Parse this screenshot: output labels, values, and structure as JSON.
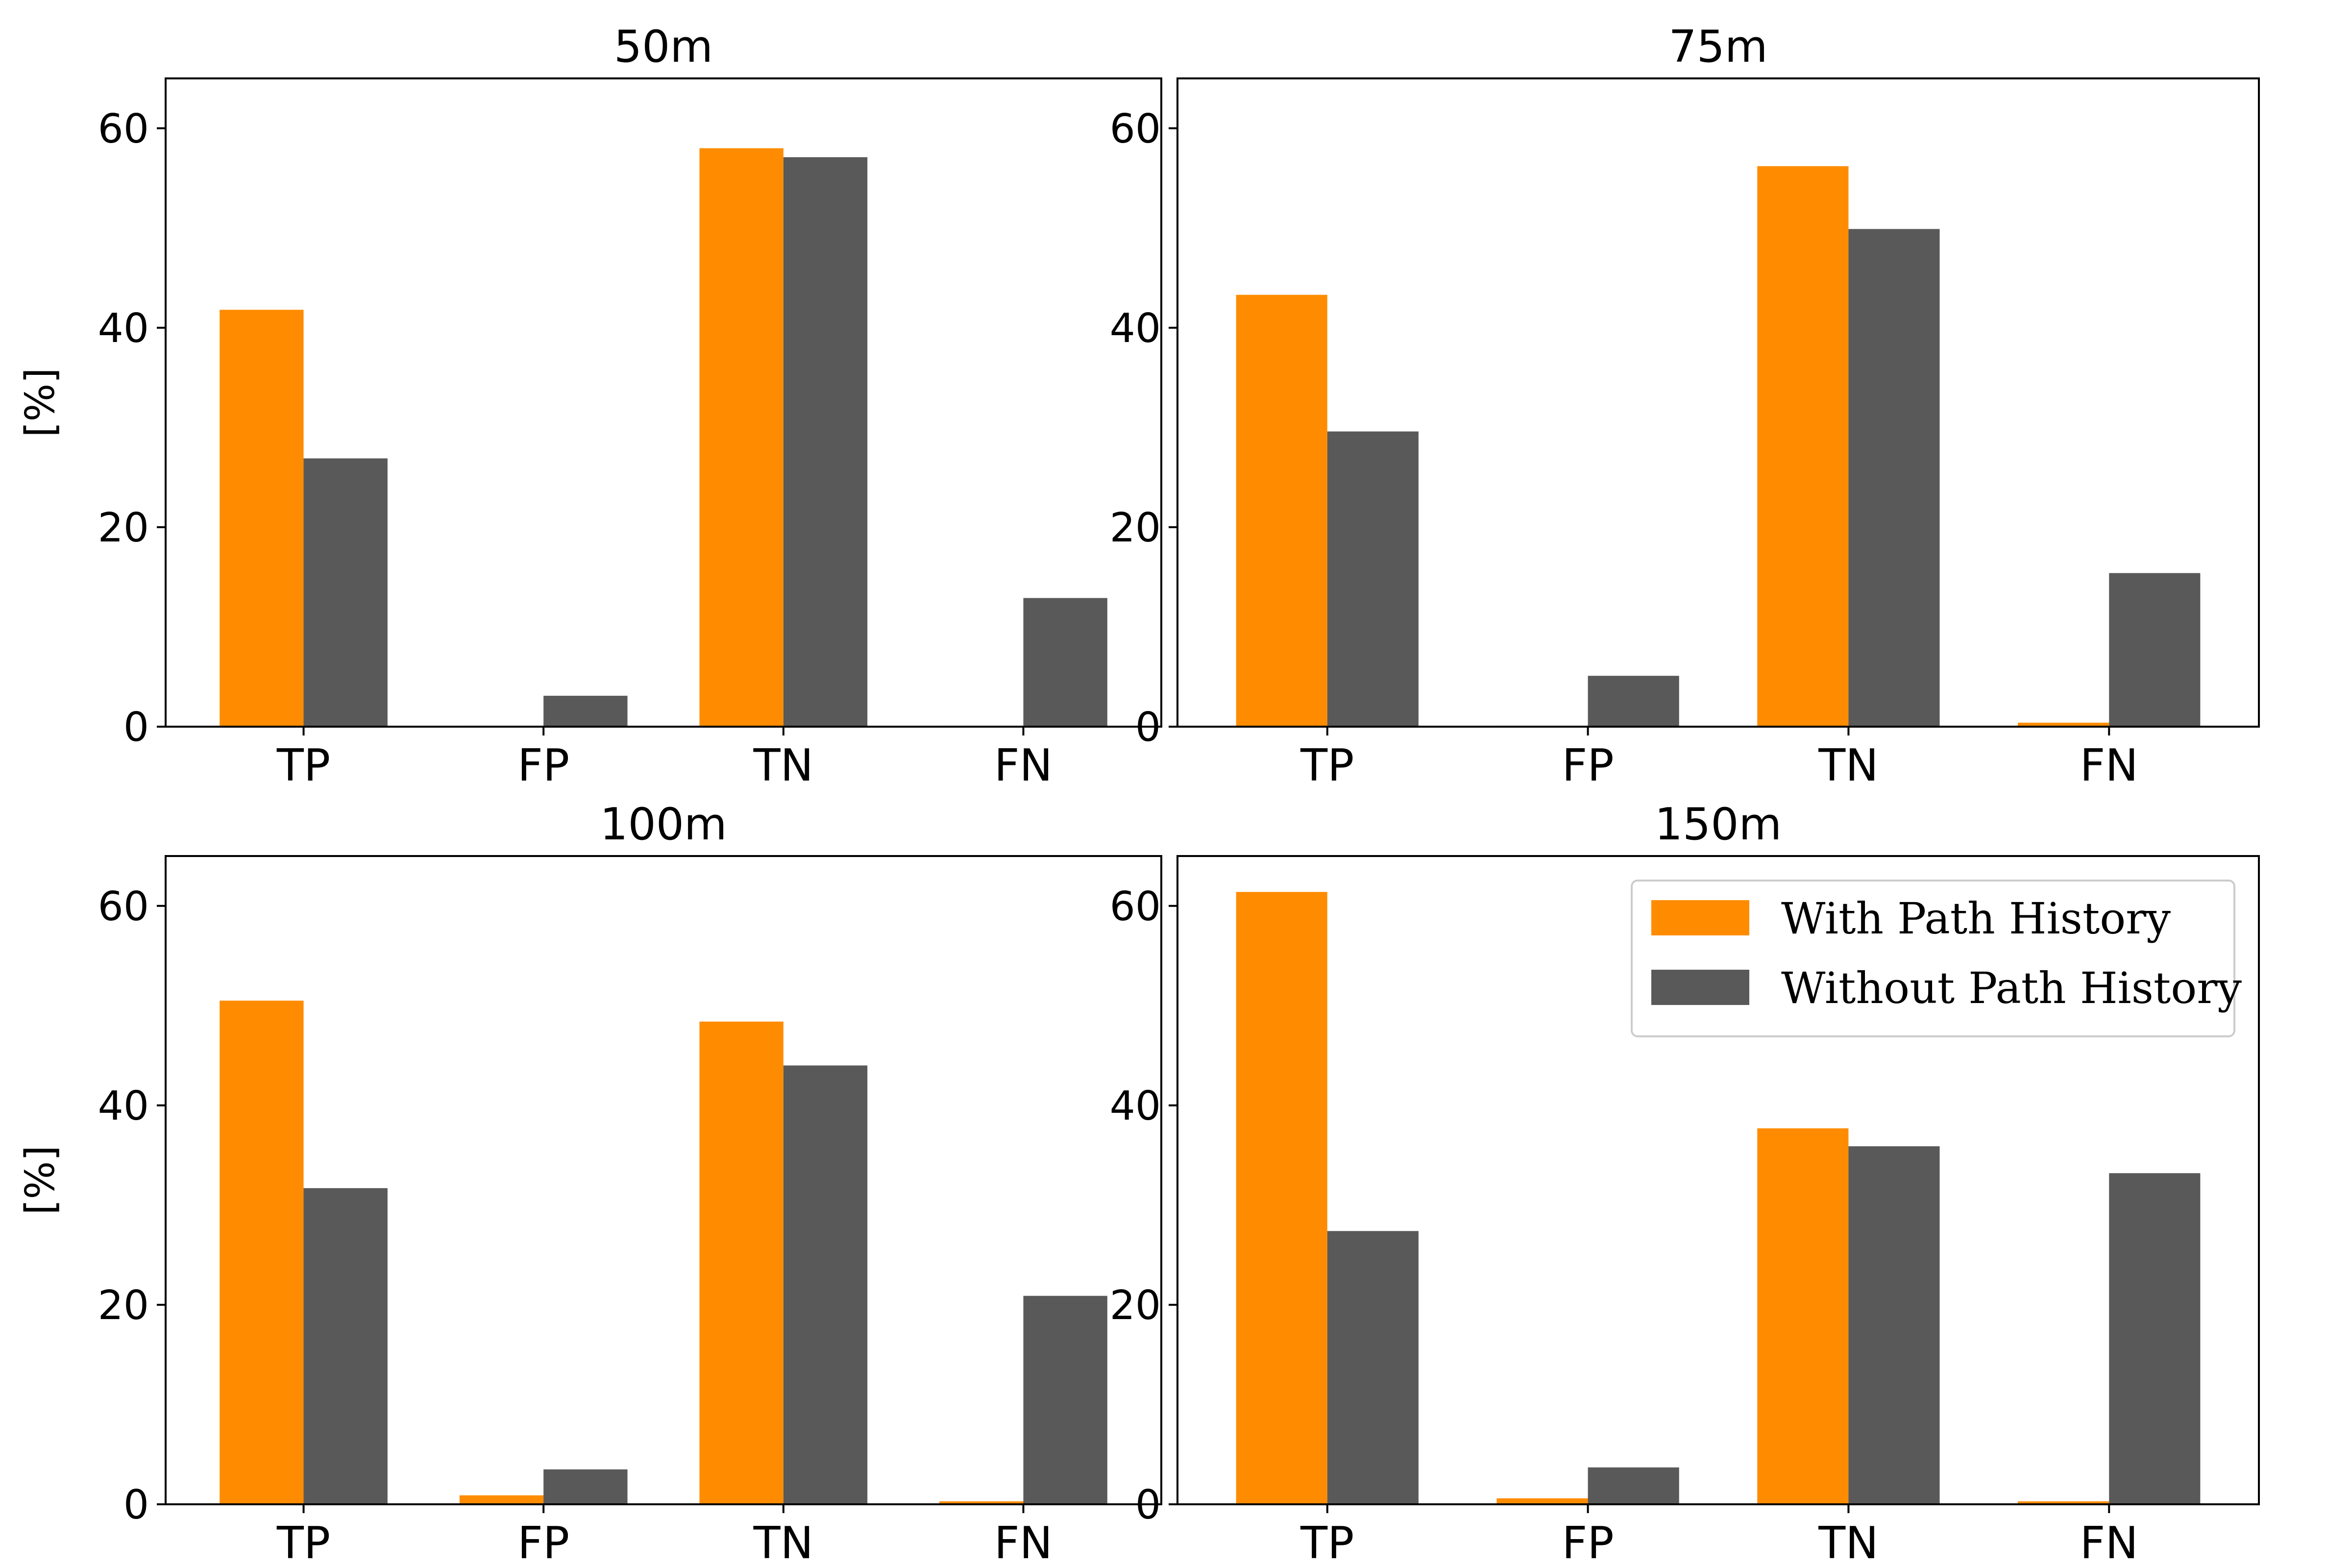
{
  "chart_data": [
    {
      "type": "bar",
      "title": "50m",
      "ylabel": "[%]",
      "xlabel": "",
      "categories": [
        "TP",
        "FP",
        "TN",
        "FN"
      ],
      "ylim": [
        0,
        65
      ],
      "yticks": [
        "0",
        "20",
        "40",
        "60"
      ],
      "series": [
        {
          "name": "With Path History",
          "values": [
            41.8,
            0.1,
            58.0,
            0.1
          ]
        },
        {
          "name": "Without Path History",
          "values": [
            26.9,
            3.1,
            57.1,
            12.9
          ]
        }
      ]
    },
    {
      "type": "bar",
      "title": "75m",
      "ylabel": "",
      "xlabel": "",
      "categories": [
        "TP",
        "FP",
        "TN",
        "FN"
      ],
      "ylim": [
        0,
        65
      ],
      "yticks": [
        "0",
        "20",
        "40",
        "60"
      ],
      "series": [
        {
          "name": "With Path History",
          "values": [
            43.3,
            0.1,
            56.2,
            0.4
          ]
        },
        {
          "name": "Without Path History",
          "values": [
            29.6,
            5.1,
            49.9,
            15.4
          ]
        }
      ]
    },
    {
      "type": "bar",
      "title": "100m",
      "ylabel": "[%]",
      "xlabel": "",
      "categories": [
        "TP",
        "FP",
        "TN",
        "FN"
      ],
      "ylim": [
        0,
        65
      ],
      "yticks": [
        "0",
        "20",
        "40",
        "60"
      ],
      "series": [
        {
          "name": "With Path History",
          "values": [
            50.5,
            0.9,
            48.4,
            0.3
          ]
        },
        {
          "name": "Without Path History",
          "values": [
            31.7,
            3.5,
            44.0,
            20.9
          ]
        }
      ]
    },
    {
      "type": "bar",
      "title": "150m",
      "ylabel": "",
      "xlabel": "",
      "categories": [
        "TP",
        "FP",
        "TN",
        "FN"
      ],
      "ylim": [
        0,
        65
      ],
      "yticks": [
        "0",
        "20",
        "40",
        "60"
      ],
      "legend_position": "top-right",
      "series": [
        {
          "name": "With Path History",
          "values": [
            61.4,
            0.6,
            37.7,
            0.3
          ]
        },
        {
          "name": "Without Path History",
          "values": [
            27.4,
            3.7,
            35.9,
            33.2
          ]
        }
      ]
    }
  ],
  "colors": {
    "with_path_history": "#ff8c00",
    "without_path_history": "#595959"
  },
  "legend": {
    "items": [
      "With Path History",
      "Without Path History"
    ]
  }
}
